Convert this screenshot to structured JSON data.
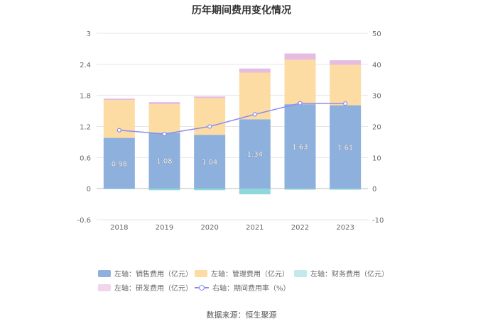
{
  "chart_data": {
    "type": "bar",
    "title": "历年期间费用变化情况",
    "categories": [
      "2018",
      "2019",
      "2020",
      "2021",
      "2022",
      "2023"
    ],
    "left_axis": {
      "ylim": [
        -0.6,
        3
      ],
      "ticks": [
        "3",
        "2.4",
        "1.8",
        "1.2",
        "0.6",
        "0",
        "-0.6"
      ]
    },
    "right_axis": {
      "ylim": [
        -10,
        50
      ],
      "ticks": [
        "50",
        "40",
        "30",
        "20",
        "10",
        "0",
        "-10"
      ]
    },
    "series": [
      {
        "name": "左轴：销售费用（亿元）",
        "type": "bar",
        "axis": "left",
        "color": "#8eb0dd",
        "values": [
          0.98,
          1.08,
          1.04,
          1.34,
          1.63,
          1.61
        ],
        "labels": [
          "0.98",
          "1.08",
          "1.04",
          "1.34",
          "1.63",
          "1.61"
        ]
      },
      {
        "name": "左轴：管理费用（亿元）",
        "type": "bar",
        "axis": "left",
        "color": "#fddca4",
        "values": [
          0.73,
          0.55,
          0.71,
          0.9,
          0.86,
          0.78
        ]
      },
      {
        "name": "左轴：财务费用（亿元）",
        "type": "bar",
        "axis": "left",
        "color": "#8ed8dc",
        "values": [
          -0.01,
          -0.03,
          -0.03,
          -0.11,
          -0.02,
          -0.02
        ]
      },
      {
        "name": "左轴：研发费用（亿元）",
        "type": "bar",
        "axis": "left",
        "color": "#e6bde0",
        "values": [
          0.03,
          0.04,
          0.03,
          0.08,
          0.12,
          0.09
        ]
      },
      {
        "name": "右轴：期间费用率（%）",
        "type": "line",
        "axis": "right",
        "color": "#8c8cf0",
        "values": [
          18.8,
          17.6,
          20.0,
          23.9,
          27.5,
          27.4
        ]
      }
    ]
  },
  "source": "数据来源：恒生聚源"
}
